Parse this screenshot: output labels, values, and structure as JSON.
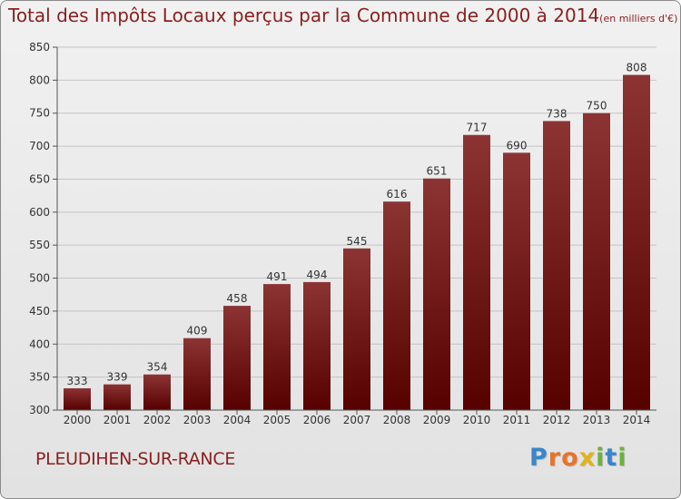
{
  "title": {
    "main": "Total des Impôts Locaux perçus par la Commune de 2000 à 2014",
    "unit": "(en milliers d'€)"
  },
  "commune": "PLEUDIHEN-SUR-RANCE",
  "brand": {
    "name": "Proxiti",
    "letters": [
      {
        "char": "P",
        "color": "#3a86c8"
      },
      {
        "char": "r",
        "color": "#e8732a"
      },
      {
        "char": "o",
        "color": "#e8732a"
      },
      {
        "char": "x",
        "color": "#e3b21b"
      },
      {
        "char": "i",
        "color": "#6bb33a"
      },
      {
        "char": "t",
        "color": "#3a86c8"
      },
      {
        "char": "i",
        "color": "#6bb33a"
      }
    ]
  },
  "chart_data": {
    "type": "bar",
    "title": "Total des Impôts Locaux perçus par la Commune de 2000 à 2014",
    "ylabel": "en milliers d'€",
    "xlabel": "",
    "categories": [
      "2000",
      "2001",
      "2002",
      "2003",
      "2004",
      "2005",
      "2006",
      "2007",
      "2008",
      "2009",
      "2010",
      "2011",
      "2012",
      "2013",
      "2014"
    ],
    "values": [
      333,
      339,
      354,
      409,
      458,
      491,
      494,
      545,
      616,
      651,
      717,
      690,
      738,
      750,
      808
    ],
    "ylim": [
      300,
      850
    ],
    "yticks": [
      300,
      350,
      400,
      450,
      500,
      550,
      600,
      650,
      700,
      750,
      800,
      850
    ],
    "grid": true,
    "bar_color": "#7a1a1a"
  }
}
